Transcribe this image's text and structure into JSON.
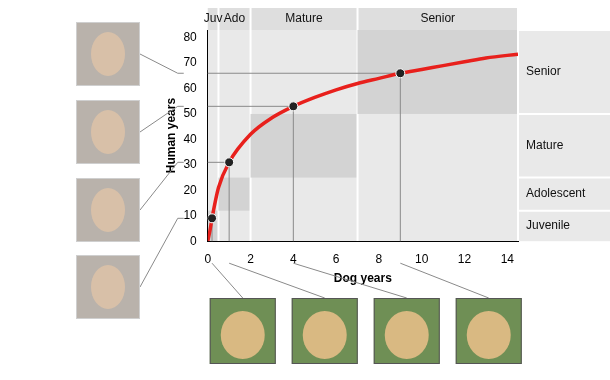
{
  "chart_data": {
    "type": "line",
    "x_label": "Dog years",
    "y_label": "Human years",
    "xlim": [
      0,
      14.5
    ],
    "xticks": [
      0,
      2,
      4,
      6,
      8,
      10,
      12,
      14
    ],
    "ylim": [
      0,
      83
    ],
    "yticks": [
      0,
      10,
      20,
      30,
      40,
      50,
      60,
      70,
      80
    ],
    "grid": false,
    "series": [
      {
        "type": "line",
        "color": "#e8201c",
        "line_style": "solid",
        "marker": "none",
        "x": [
          0,
          0.1,
          0.2,
          0.5,
          1,
          2,
          3,
          4,
          5,
          6,
          7,
          8,
          9,
          10,
          11,
          12,
          13,
          14.5
        ],
        "values": [
          0,
          4,
          9,
          21,
          31,
          42,
          48.5,
          53,
          56.5,
          59.5,
          62,
          64,
          66,
          67.5,
          69,
          70.5,
          72,
          73.5
        ]
      },
      {
        "type": "scatter",
        "color": "#222222",
        "marker": "circle",
        "x": [
          0.2,
          1,
          4,
          9
        ],
        "values": [
          9,
          31,
          53,
          66
        ]
      }
    ],
    "stages": [
      {
        "top_label": "Juv",
        "side_label": "Juvenile",
        "dog_years": [
          0,
          0.5
        ],
        "human_years": [
          0,
          12
        ]
      },
      {
        "top_label": "Ado",
        "side_label": "Adolescent",
        "dog_years": [
          0.5,
          2
        ],
        "human_years": [
          12,
          25
        ]
      },
      {
        "top_label": "Mature",
        "side_label": "Mature",
        "dog_years": [
          2,
          7
        ],
        "human_years": [
          25,
          50
        ]
      },
      {
        "top_label": "Senior",
        "side_label": "Senior",
        "dog_years": [
          7,
          14.5
        ],
        "human_years": [
          50,
          83
        ]
      }
    ]
  }
}
